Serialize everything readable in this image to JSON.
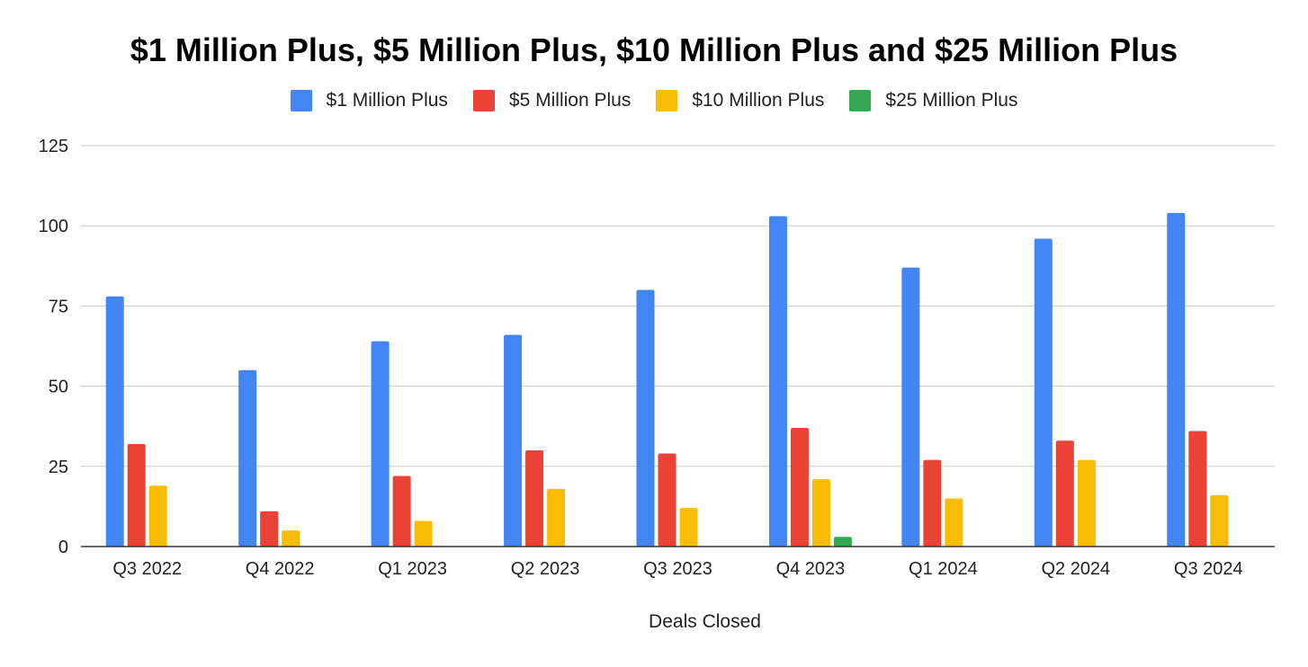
{
  "chart_data": {
    "type": "bar",
    "title": "$1 Million Plus, $5 Million Plus, $10 Million Plus and $25 Million Plus",
    "xlabel": "Deals Closed",
    "ylabel": "",
    "ylim": [
      0,
      125
    ],
    "yticks": [
      0,
      25,
      50,
      75,
      100,
      125
    ],
    "grid": true,
    "legend_position": "top",
    "categories": [
      "Q3 2022",
      "Q4 2022",
      "Q1 2023",
      "Q2 2023",
      "Q3 2023",
      "Q4 2023",
      "Q1 2024",
      "Q2 2024",
      "Q3 2024"
    ],
    "series": [
      {
        "name": "$1 Million Plus",
        "color": "#4285F4",
        "values": [
          78,
          55,
          64,
          66,
          80,
          103,
          87,
          96,
          104
        ]
      },
      {
        "name": "$5 Million Plus",
        "color": "#EA4335",
        "values": [
          32,
          11,
          22,
          30,
          29,
          37,
          27,
          33,
          36
        ]
      },
      {
        "name": "$10 Million Plus",
        "color": "#FBBC04",
        "values": [
          19,
          5,
          8,
          18,
          12,
          21,
          15,
          27,
          16
        ]
      },
      {
        "name": "$25 Million Plus",
        "color": "#34A853",
        "values": [
          0,
          0,
          0,
          0,
          0,
          3,
          0,
          0,
          0
        ]
      }
    ]
  }
}
